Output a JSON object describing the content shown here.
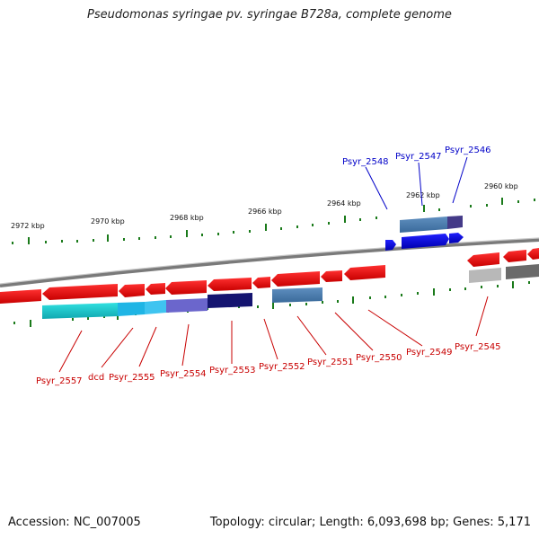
{
  "title": "Pseudomonas syringae pv. syringae B728a, complete genome",
  "footer": {
    "accession": "Accession: NC_007005",
    "summary": "Topology: circular; Length: 6,093,698 bp; Genes: 5,171"
  },
  "scale_labels": [
    "2972 kbp",
    "2970 kbp",
    "2968 kbp",
    "2966 kbp",
    "2964 kbp",
    "2962 kbp",
    "2960 kbp"
  ],
  "gene_labels_top": [
    "Psyr_2548",
    "Psyr_2547",
    "Psyr_2546"
  ],
  "gene_labels_bottom": [
    "Psyr_2557",
    "dcd",
    "Psyr_2555",
    "Psyr_2554",
    "Psyr_2553",
    "Psyr_2552",
    "Psyr_2551",
    "Psyr_2550",
    "Psyr_2549",
    "Psyr_2545"
  ],
  "colors": {
    "forward_gene": "#0000ff",
    "reverse_gene": "#ff0000",
    "genome_line": "#888888",
    "ticks": "#1a7a1a",
    "label_blue": "#0000c8",
    "label_red": "#c80000"
  }
}
